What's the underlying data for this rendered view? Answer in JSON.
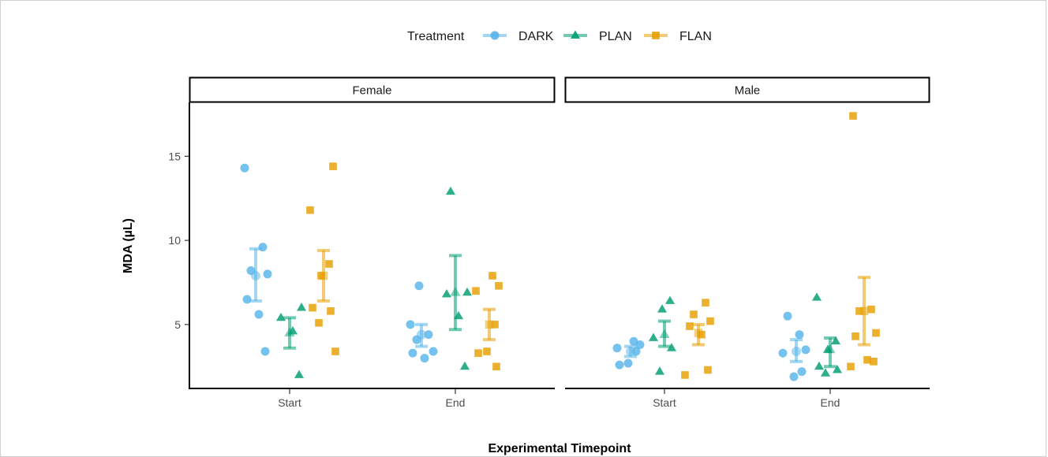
{
  "chart_data": {
    "type": "scatter",
    "xlabel": "Experimental Timepoint",
    "ylabel": "MDA (µL)",
    "ylim": [
      1.2,
      18.2
    ],
    "yticks": [
      5,
      10,
      15
    ],
    "categories": [
      "Start",
      "End"
    ],
    "legend": {
      "title": "Treatment",
      "position": "top"
    },
    "series": [
      {
        "name": "DARK",
        "color": "#56B4E9",
        "marker": "circle"
      },
      {
        "name": "PLAN",
        "color": "#009E73",
        "marker": "triangle"
      },
      {
        "name": "FLAN",
        "color": "#E69F00",
        "marker": "square"
      }
    ],
    "panels": [
      {
        "label": "Female",
        "groups": [
          {
            "series": "DARK",
            "x": "Start",
            "mean": 7.9,
            "lower": 6.4,
            "upper": 9.5,
            "points": [
              14.3,
              9.6,
              8.2,
              8.0,
              6.5,
              5.6,
              3.4
            ]
          },
          {
            "series": "PLAN",
            "x": "Start",
            "mean": 4.5,
            "lower": 3.6,
            "upper": 5.4,
            "points": [
              6.0,
              5.4,
              4.6,
              2.0
            ]
          },
          {
            "series": "FLAN",
            "x": "Start",
            "mean": 7.9,
            "lower": 6.4,
            "upper": 9.4,
            "points": [
              14.4,
              11.8,
              8.6,
              7.9,
              6.0,
              5.8,
              5.1,
              3.4
            ]
          },
          {
            "series": "DARK",
            "x": "End",
            "mean": 4.4,
            "lower": 3.7,
            "upper": 5.0,
            "points": [
              7.3,
              5.0,
              4.4,
              4.1,
              3.4,
              3.3,
              3.0
            ]
          },
          {
            "series": "PLAN",
            "x": "End",
            "mean": 6.9,
            "lower": 4.7,
            "upper": 9.1,
            "points": [
              12.9,
              6.9,
              6.8,
              5.5,
              2.5
            ]
          },
          {
            "series": "FLAN",
            "x": "End",
            "mean": 5.0,
            "lower": 4.1,
            "upper": 5.9,
            "points": [
              7.9,
              7.3,
              7.0,
              5.0,
              3.4,
              3.3,
              2.5
            ]
          }
        ]
      },
      {
        "label": "Male",
        "groups": [
          {
            "series": "DARK",
            "x": "Start",
            "mean": 3.4,
            "lower": 3.1,
            "upper": 3.7,
            "points": [
              4.0,
              3.8,
              3.6,
              3.4,
              2.7,
              2.6
            ]
          },
          {
            "series": "PLAN",
            "x": "Start",
            "mean": 4.4,
            "lower": 3.7,
            "upper": 5.2,
            "points": [
              6.4,
              5.9,
              4.2,
              3.6,
              2.2
            ]
          },
          {
            "series": "FLAN",
            "x": "Start",
            "mean": 4.5,
            "lower": 3.8,
            "upper": 5.0,
            "points": [
              6.3,
              5.6,
              5.2,
              4.9,
              4.4,
              2.3,
              2.0
            ]
          },
          {
            "series": "DARK",
            "x": "End",
            "mean": 3.4,
            "lower": 2.8,
            "upper": 4.1,
            "points": [
              5.5,
              4.4,
              3.5,
              3.3,
              2.2,
              1.9
            ]
          },
          {
            "series": "PLAN",
            "x": "End",
            "mean": 3.5,
            "lower": 2.5,
            "upper": 4.2,
            "points": [
              6.6,
              4.0,
              3.5,
              2.5,
              2.3,
              2.1
            ]
          },
          {
            "series": "FLAN",
            "x": "End",
            "mean": 5.8,
            "lower": 3.8,
            "upper": 7.8,
            "points": [
              17.4,
              5.9,
              5.8,
              4.5,
              4.3,
              2.9,
              2.8,
              2.5
            ]
          }
        ]
      }
    ]
  }
}
